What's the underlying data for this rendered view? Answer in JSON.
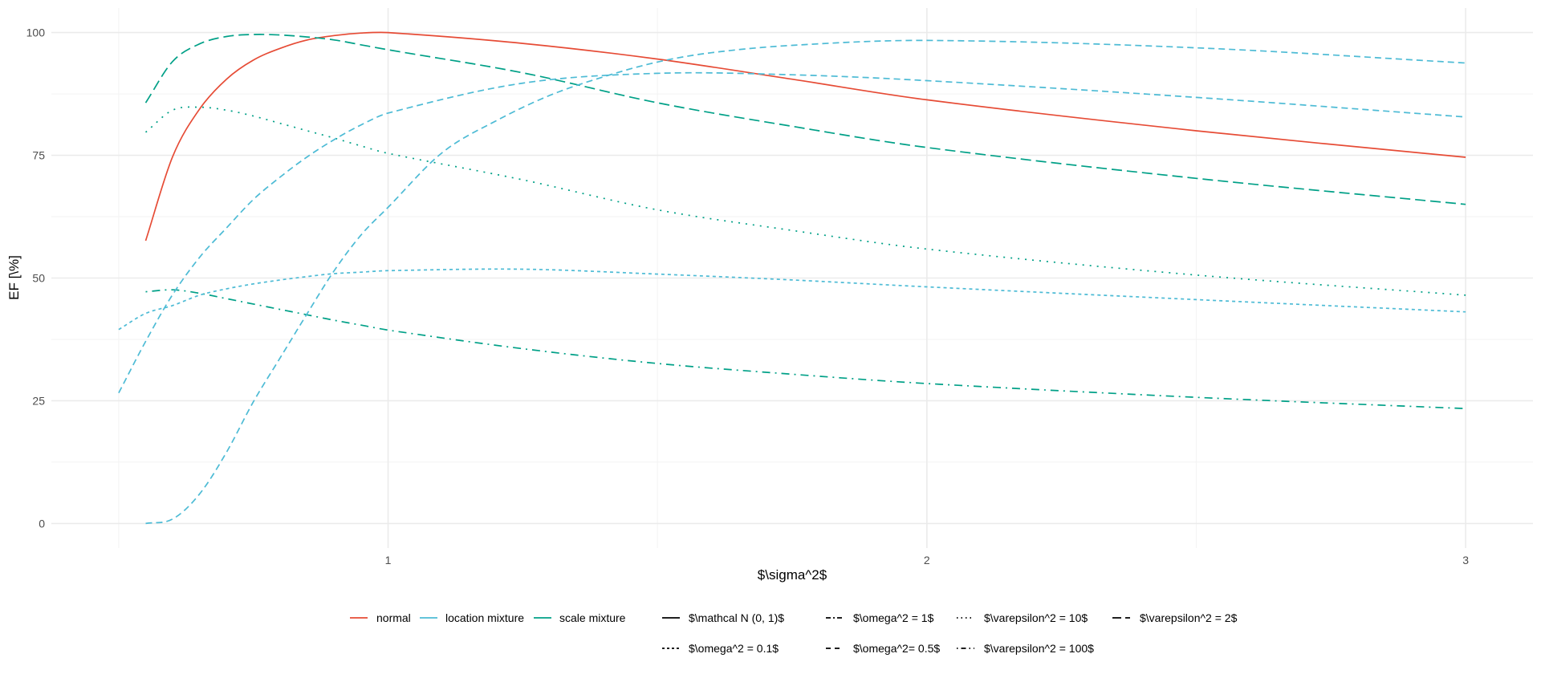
{
  "chart_data": {
    "type": "line",
    "title": "",
    "xlabel": "$\\sigma^2$",
    "ylabel": "EF [\\%]",
    "xlim": [
      0.375,
      3.125
    ],
    "ylim": [
      -5,
      105
    ],
    "x_ticks": [
      1,
      2,
      3
    ],
    "x_tick_labels": [
      "1",
      "2",
      "3"
    ],
    "x_minor_ticks": [
      0.5,
      1.5,
      2.5
    ],
    "y_ticks": [
      0,
      25,
      50,
      75,
      100
    ],
    "y_tick_labels": [
      "0",
      "25",
      "50",
      "75",
      "100"
    ],
    "y_minor_ticks": [
      12.5,
      37.5,
      62.5,
      87.5
    ],
    "grid": true,
    "legend_position": "bottom",
    "colors": {
      "normal": "#E64B35",
      "location mixture": "#4DBBD5",
      "scale mixture": "#00A087"
    },
    "color_legend": [
      "normal",
      "location mixture",
      "scale mixture"
    ],
    "linetype_legend": [
      {
        "label": "$\\mathcal N (0, 1)$",
        "linetype": "solid"
      },
      {
        "label": "$\\omega^2 = 0.1$",
        "linetype": "dotted-short"
      },
      {
        "label": "$\\omega^2 = 1$",
        "linetype": "twodash"
      },
      {
        "label": "$\\omega^2= 0.5$",
        "linetype": "dashed"
      },
      {
        "label": "$\\varepsilon^2 = 10$",
        "linetype": "dotted"
      },
      {
        "label": "$\\varepsilon^2 = 100$",
        "linetype": "dotdash"
      },
      {
        "label": "$\\varepsilon^2 = 2$",
        "linetype": "longdash"
      }
    ],
    "series": [
      {
        "name": "normal N(0,1)",
        "distribution": "normal",
        "linetype": "solid",
        "points": [
          [
            0.55,
            57.6
          ],
          [
            0.6,
            74.7
          ],
          [
            0.65,
            84.4
          ],
          [
            0.7,
            90.5
          ],
          [
            0.75,
            94.4
          ],
          [
            0.8,
            96.8
          ],
          [
            0.85,
            98.5
          ],
          [
            0.9,
            99.4
          ],
          [
            0.95,
            99.9
          ],
          [
            1,
            100
          ],
          [
            1.25,
            97.8
          ],
          [
            1.5,
            94.6
          ],
          [
            1.75,
            90.5
          ],
          [
            2,
            86.3
          ],
          [
            2.5,
            80.0
          ],
          [
            3,
            74.6
          ]
        ]
      },
      {
        "name": "scale mixture eps^2=2",
        "distribution": "scale mixture",
        "linetype": "longdash",
        "points": [
          [
            0.55,
            85.7
          ],
          [
            0.6,
            94.1
          ],
          [
            0.65,
            97.7
          ],
          [
            0.7,
            99.2
          ],
          [
            0.75,
            99.6
          ],
          [
            0.8,
            99.5
          ],
          [
            0.85,
            99.1
          ],
          [
            0.9,
            98.5
          ],
          [
            0.95,
            97.5
          ],
          [
            1,
            96.5
          ],
          [
            1.25,
            91.8
          ],
          [
            1.5,
            85.7
          ],
          [
            1.75,
            80.9
          ],
          [
            2,
            76.6
          ],
          [
            2.5,
            70.3
          ],
          [
            3,
            65.0
          ]
        ]
      },
      {
        "name": "scale mixture eps^2=10",
        "distribution": "scale mixture",
        "linetype": "dotted",
        "points": [
          [
            0.55,
            79.7
          ],
          [
            0.6,
            84.2
          ],
          [
            0.65,
            84.8
          ],
          [
            0.7,
            84.2
          ],
          [
            0.75,
            83.0
          ],
          [
            0.8,
            81.5
          ],
          [
            0.85,
            80.0
          ],
          [
            0.9,
            78.5
          ],
          [
            0.95,
            76.9
          ],
          [
            1,
            75.4
          ],
          [
            1.25,
            70.0
          ],
          [
            1.5,
            63.9
          ],
          [
            1.75,
            59.7
          ],
          [
            2,
            55.9
          ],
          [
            2.5,
            50.6
          ],
          [
            3,
            46.5
          ]
        ]
      },
      {
        "name": "scale mixture eps^2=100",
        "distribution": "scale mixture",
        "linetype": "dotdash",
        "points": [
          [
            0.55,
            47.2
          ],
          [
            0.6,
            47.6
          ],
          [
            0.65,
            46.9
          ],
          [
            0.7,
            45.8
          ],
          [
            0.75,
            44.7
          ],
          [
            0.8,
            43.6
          ],
          [
            0.85,
            42.5
          ],
          [
            0.9,
            41.4
          ],
          [
            0.95,
            40.4
          ],
          [
            1,
            39.4
          ],
          [
            1.25,
            35.6
          ],
          [
            1.5,
            32.6
          ],
          [
            1.75,
            30.4
          ],
          [
            2,
            28.5
          ],
          [
            2.5,
            25.7
          ],
          [
            3,
            23.4
          ]
        ]
      },
      {
        "name": "location mixture omega^2=0.1",
        "distribution": "location mixture",
        "linetype": "dotted-short",
        "points": [
          [
            0.5,
            39.5
          ],
          [
            0.55,
            42.8
          ],
          [
            0.6,
            44.4
          ],
          [
            0.65,
            46.5
          ],
          [
            0.7,
            47.8
          ],
          [
            0.75,
            48.8
          ],
          [
            0.8,
            49.6
          ],
          [
            0.85,
            50.3
          ],
          [
            0.9,
            50.9
          ],
          [
            0.95,
            51.2
          ],
          [
            1,
            51.5
          ],
          [
            1.25,
            51.8
          ],
          [
            1.5,
            50.8
          ],
          [
            1.75,
            49.6
          ],
          [
            2,
            48.2
          ],
          [
            2.5,
            45.6
          ],
          [
            3,
            43.1
          ]
        ]
      },
      {
        "name": "location mixture omega^2=0.5",
        "distribution": "location mixture",
        "linetype": "dashed",
        "points": [
          [
            0.5,
            26.6
          ],
          [
            0.55,
            37.1
          ],
          [
            0.6,
            46.6
          ],
          [
            0.65,
            54.2
          ],
          [
            0.7,
            60.2
          ],
          [
            0.75,
            66.0
          ],
          [
            0.8,
            70.6
          ],
          [
            0.85,
            74.7
          ],
          [
            0.9,
            78.2
          ],
          [
            0.95,
            81.2
          ],
          [
            1,
            83.6
          ],
          [
            1.25,
            89.7
          ],
          [
            1.5,
            91.7
          ],
          [
            1.75,
            91.4
          ],
          [
            2,
            90.2
          ],
          [
            2.5,
            86.8
          ],
          [
            3,
            82.8
          ]
        ]
      },
      {
        "name": "location mixture omega^2=1",
        "distribution": "location mixture",
        "linetype": "twodash",
        "points": [
          [
            0.55,
            0
          ],
          [
            0.6,
            0.9
          ],
          [
            0.65,
            6.0
          ],
          [
            0.7,
            14.5
          ],
          [
            0.75,
            24.8
          ],
          [
            0.8,
            33.8
          ],
          [
            0.85,
            42.8
          ],
          [
            0.9,
            51.5
          ],
          [
            0.95,
            58.8
          ],
          [
            1,
            64.4
          ],
          [
            1.1,
            75.5
          ],
          [
            1.2,
            82.0
          ],
          [
            1.3,
            87.2
          ],
          [
            1.4,
            91.0
          ],
          [
            1.5,
            94.0
          ],
          [
            1.6,
            95.9
          ],
          [
            1.75,
            97.4
          ],
          [
            2,
            98.4
          ],
          [
            2.5,
            96.9
          ],
          [
            3,
            93.8
          ]
        ]
      }
    ]
  }
}
